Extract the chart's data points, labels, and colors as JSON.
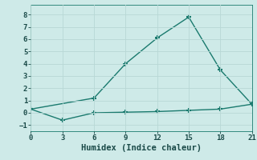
{
  "line1_x": [
    0,
    6,
    9,
    12,
    15,
    18,
    21
  ],
  "line1_y": [
    0.3,
    1.2,
    4.0,
    6.1,
    7.8,
    3.5,
    0.7
  ],
  "line2_x": [
    0,
    3,
    6,
    9,
    12,
    15,
    18,
    21
  ],
  "line2_y": [
    0.3,
    -0.6,
    0.0,
    0.05,
    0.1,
    0.2,
    0.3,
    0.7
  ],
  "line_color": "#1a7a6e",
  "bg_color": "#ceeae8",
  "grid_color": "#b8d8d5",
  "xlabel": "Humidex (Indice chaleur)",
  "xlim": [
    0,
    21
  ],
  "ylim": [
    -1.5,
    8.8
  ],
  "xticks": [
    0,
    3,
    6,
    9,
    12,
    15,
    18,
    21
  ],
  "yticks": [
    -1,
    0,
    1,
    2,
    3,
    4,
    5,
    6,
    7,
    8
  ],
  "marker": "+",
  "linewidth": 1.0,
  "markersize": 5,
  "markeredgewidth": 1.5,
  "tick_fontsize": 6.5,
  "xlabel_fontsize": 7.5
}
